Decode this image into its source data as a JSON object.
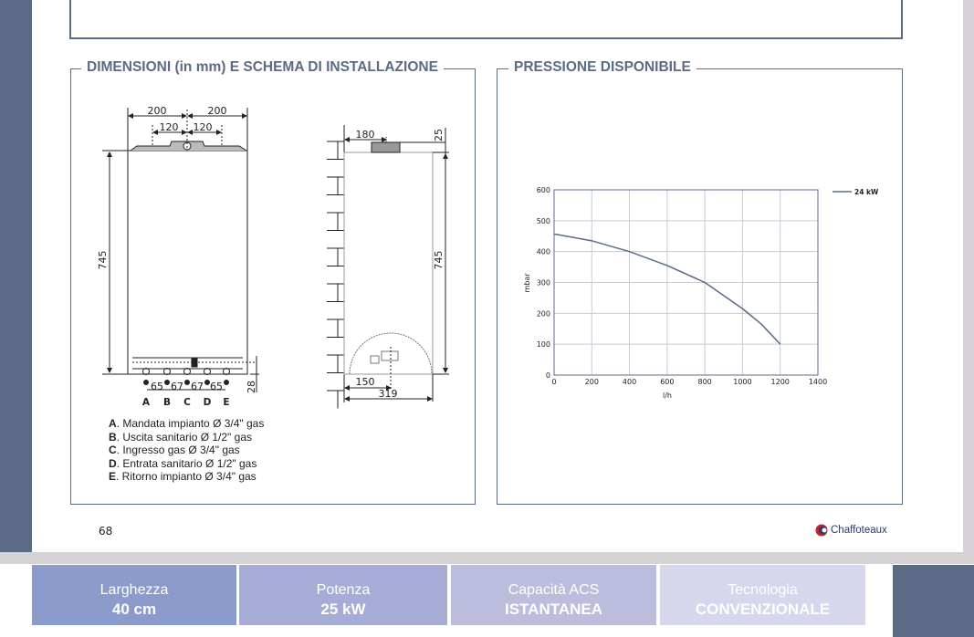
{
  "sections": {
    "dimensions_title": "DIMENSIONI (in mm) E SCHEMA DI INSTALLAZIONE",
    "pressure_title": "PRESSIONE DISPONIBILE"
  },
  "front_view": {
    "width_halves": [
      "200",
      "200"
    ],
    "flue_offsets": [
      "120",
      "120"
    ],
    "height": "745",
    "bottom_offset": "28",
    "connection_spacings": [
      "65",
      "67",
      "67",
      "65"
    ],
    "connection_letters": [
      "A",
      "B",
      "C",
      "D",
      "E"
    ]
  },
  "side_view": {
    "flue_distance": "180",
    "flue_height": "25",
    "height": "745",
    "connection_depth": "150",
    "depth": "319"
  },
  "connections": [
    {
      "letter": "A",
      "text": ". Mandata impianto Ø 3/4\" gas"
    },
    {
      "letter": "B",
      "text": ". Uscita sanitario Ø 1/2\" gas"
    },
    {
      "letter": "C",
      "text": ". Ingresso gas Ø 3/4\" gas"
    },
    {
      "letter": "D",
      "text": ". Entrata sanitario Ø 1/2\" gas"
    },
    {
      "letter": "E",
      "text": ". Ritorno impianto Ø 3/4\" gas"
    }
  ],
  "chart_data": {
    "type": "line",
    "title": "",
    "xlabel": "l/h",
    "ylabel": "mbar",
    "xlim": [
      0,
      1400
    ],
    "ylim": [
      0,
      600
    ],
    "xticks": [
      0,
      200,
      400,
      600,
      800,
      1000,
      1200,
      1400
    ],
    "yticks": [
      0,
      100,
      200,
      300,
      400,
      500,
      600
    ],
    "grid": true,
    "legend_position": "top-right",
    "series": [
      {
        "name": "24 kW",
        "color": "#5b6b86",
        "x": [
          0,
          200,
          400,
          600,
          800,
          1000,
          1100,
          1200
        ],
        "y": [
          457,
          435,
          400,
          355,
          300,
          215,
          165,
          100
        ]
      }
    ]
  },
  "footer": {
    "page_number": "68",
    "brand": "Chaffoteaux"
  },
  "tiles": [
    {
      "label": "Larghezza",
      "value": "40 cm",
      "color": "#8b9bcc"
    },
    {
      "label": "Potenza",
      "value": "25 kW",
      "color": "#a6acd6"
    },
    {
      "label": "Capacità ACS",
      "value": "ISTANTANEA",
      "color": "#bcbddc"
    },
    {
      "label": "Tecnologia",
      "value": "CONVENZIONALE",
      "color": "#d6d6ec"
    }
  ],
  "colors": {
    "accent": "#5b6b86",
    "grid": "#c5cad6"
  }
}
